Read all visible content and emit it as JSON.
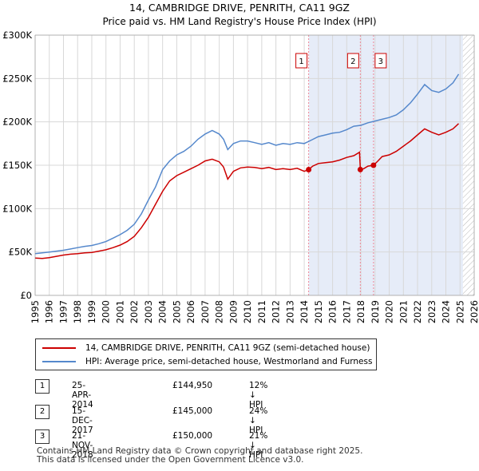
{
  "chart_data": {
    "type": "line",
    "title": "14, CAMBRIDGE DRIVE, PENRITH, CA11 9GZ",
    "subtitle": "Price paid vs. HM Land Registry's House Price Index (HPI)",
    "xlabel": "",
    "ylabel": "",
    "xlim": [
      1995,
      2026
    ],
    "ylim": [
      0,
      300000
    ],
    "x_ticks": [
      "1995",
      "1996",
      "1997",
      "1998",
      "1999",
      "2000",
      "2001",
      "2002",
      "2003",
      "2004",
      "2005",
      "2006",
      "2007",
      "2008",
      "2009",
      "2010",
      "2011",
      "2012",
      "2013",
      "2014",
      "2015",
      "2016",
      "2017",
      "2018",
      "2019",
      "2020",
      "2021",
      "2022",
      "2023",
      "2024",
      "2025",
      "2026"
    ],
    "y_ticks": [
      {
        "value": 0,
        "label": "£0"
      },
      {
        "value": 50000,
        "label": "£50K"
      },
      {
        "value": 100000,
        "label": "£100K"
      },
      {
        "value": 150000,
        "label": "£150K"
      },
      {
        "value": 200000,
        "label": "£200K"
      },
      {
        "value": 250000,
        "label": "£250K"
      },
      {
        "value": 300000,
        "label": "£300K"
      }
    ],
    "grid": true,
    "shaded_region": {
      "from": 2014.31,
      "to": 2025.2
    },
    "future_hatch_from": 2025.2,
    "series": [
      {
        "name": "14, CAMBRIDGE DRIVE, PENRITH, CA11 9GZ (semi-detached house)",
        "color": "#cc0000",
        "x": [
          1995.0,
          1995.5,
          1996.0,
          1996.5,
          1997.0,
          1997.5,
          1998.0,
          1998.5,
          1999.0,
          1999.5,
          2000.0,
          2000.5,
          2001.0,
          2001.5,
          2002.0,
          2002.5,
          2003.0,
          2003.5,
          2004.0,
          2004.5,
          2005.0,
          2005.5,
          2006.0,
          2006.5,
          2007.0,
          2007.5,
          2008.0,
          2008.3,
          2008.6,
          2009.0,
          2009.5,
          2010.0,
          2010.5,
          2011.0,
          2011.5,
          2012.0,
          2012.5,
          2013.0,
          2013.5,
          2014.0,
          2014.31,
          2014.6,
          2015.0,
          2015.5,
          2016.0,
          2016.5,
          2017.0,
          2017.5,
          2017.9,
          2017.96,
          2018.2,
          2018.5,
          2018.89,
          2019.2,
          2019.5,
          2020.0,
          2020.5,
          2021.0,
          2021.5,
          2022.0,
          2022.5,
          2023.0,
          2023.5,
          2024.0,
          2024.5,
          2024.9
        ],
        "values": [
          43000,
          42500,
          43500,
          45000,
          46500,
          47500,
          48000,
          49000,
          49500,
          51000,
          52500,
          55000,
          58000,
          62000,
          68000,
          78000,
          90000,
          105000,
          120000,
          132000,
          138000,
          142000,
          146000,
          150000,
          155000,
          157000,
          154000,
          148000,
          134000,
          143000,
          147000,
          148000,
          147500,
          146000,
          147500,
          145000,
          146000,
          145000,
          146500,
          143000,
          144950,
          149000,
          152000,
          153000,
          154000,
          156000,
          159000,
          161000,
          165000,
          145000,
          146000,
          149000,
          150000,
          155000,
          160000,
          162000,
          166000,
          172000,
          178000,
          185000,
          192000,
          188000,
          185000,
          188000,
          192000,
          198000
        ]
      },
      {
        "name": "HPI: Average price, semi-detached house, Westmorland and Furness",
        "color": "#5588cc",
        "x": [
          1995.0,
          1995.5,
          1996.0,
          1996.5,
          1997.0,
          1997.5,
          1998.0,
          1998.5,
          1999.0,
          1999.5,
          2000.0,
          2000.5,
          2001.0,
          2001.5,
          2002.0,
          2002.5,
          2003.0,
          2003.5,
          2004.0,
          2004.5,
          2005.0,
          2005.5,
          2006.0,
          2006.5,
          2007.0,
          2007.5,
          2008.0,
          2008.3,
          2008.6,
          2009.0,
          2009.5,
          2010.0,
          2010.5,
          2011.0,
          2011.5,
          2012.0,
          2012.5,
          2013.0,
          2013.5,
          2014.0,
          2014.5,
          2015.0,
          2015.5,
          2016.0,
          2016.5,
          2017.0,
          2017.5,
          2018.0,
          2018.5,
          2019.0,
          2019.5,
          2020.0,
          2020.5,
          2021.0,
          2021.5,
          2022.0,
          2022.5,
          2023.0,
          2023.5,
          2024.0,
          2024.5,
          2024.9
        ],
        "values": [
          48000,
          49000,
          50000,
          51000,
          52000,
          53500,
          55000,
          56500,
          57500,
          59500,
          62000,
          66000,
          70000,
          75000,
          82000,
          94000,
          110000,
          125000,
          145000,
          155000,
          162000,
          166000,
          172000,
          180000,
          186000,
          190000,
          186000,
          180000,
          168000,
          175000,
          178000,
          178000,
          176000,
          174000,
          176000,
          173000,
          175000,
          174000,
          176000,
          175000,
          179000,
          183000,
          185000,
          187000,
          188000,
          191000,
          195000,
          196000,
          199000,
          201000,
          203000,
          205000,
          208000,
          214000,
          222000,
          232000,
          243000,
          236000,
          234000,
          238000,
          245000,
          255000
        ]
      }
    ],
    "markers": [
      {
        "label": "1",
        "x": 2014.31,
        "y": 144950
      },
      {
        "label": "2",
        "x": 2017.96,
        "y": 145000
      },
      {
        "label": "3",
        "x": 2018.89,
        "y": 150000
      }
    ]
  },
  "legend": {
    "property_label": "14, CAMBRIDGE DRIVE, PENRITH, CA11 9GZ (semi-detached house)",
    "hpi_label": "HPI: Average price, semi-detached house, Westmorland and Furness",
    "property_color": "#cc0000",
    "hpi_color": "#5588cc"
  },
  "transactions": [
    {
      "num": "1",
      "date": "25-APR-2014",
      "price": "£144,950",
      "diff": "12% ↓ HPI"
    },
    {
      "num": "2",
      "date": "15-DEC-2017",
      "price": "£145,000",
      "diff": "24% ↓ HPI"
    },
    {
      "num": "3",
      "date": "21-NOV-2018",
      "price": "£150,000",
      "diff": "21% ↓ HPI"
    }
  ],
  "footer": {
    "line1": "Contains HM Land Registry data © Crown copyright and database right 2025.",
    "line2": "This data is licensed under the Open Government Licence v3.0."
  }
}
